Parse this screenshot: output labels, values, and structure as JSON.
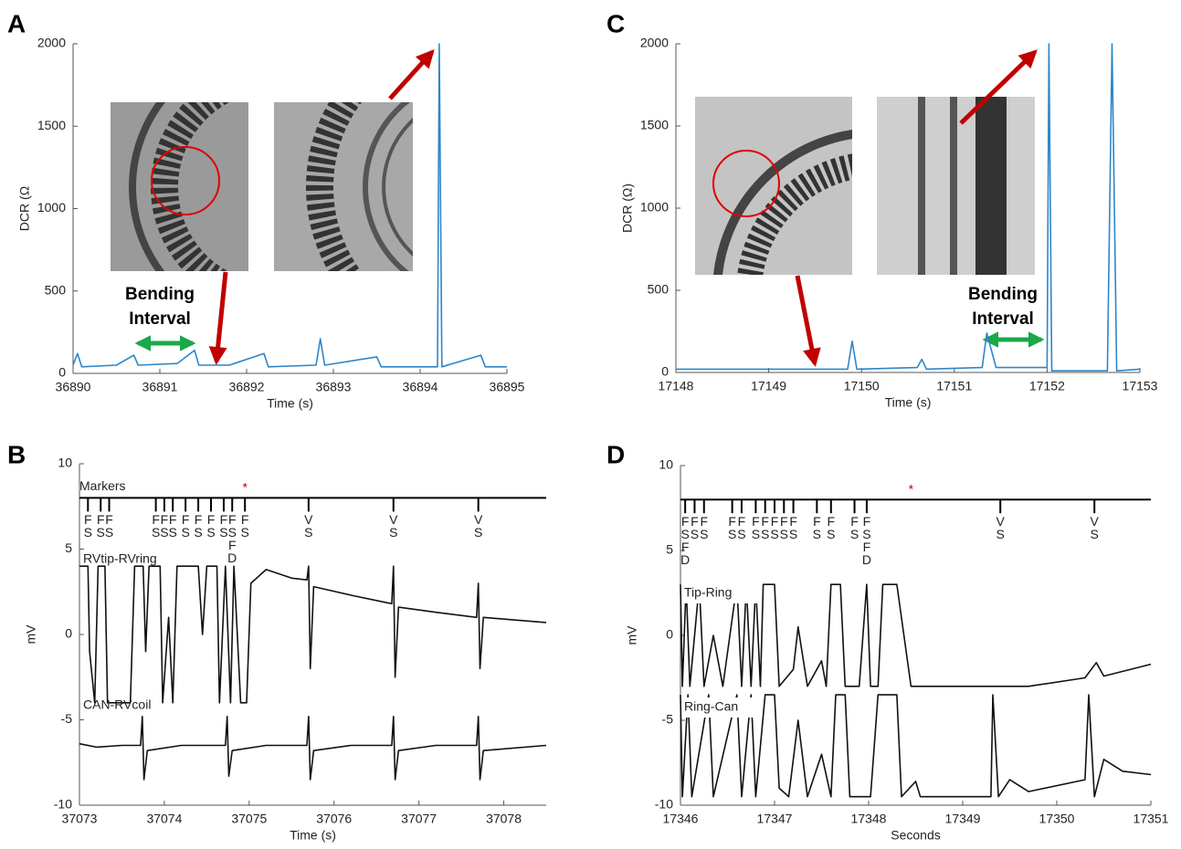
{
  "chart_data": [
    {
      "panel": "A",
      "type": "line",
      "xlabel": "Time (s)",
      "ylabel": "DCR (Ω",
      "xlim": [
        36890,
        36895
      ],
      "xticks": [
        36890,
        36891,
        36892,
        36893,
        36894,
        36895
      ],
      "ylim": [
        0,
        2000
      ],
      "yticks": [
        0,
        500,
        1000,
        1500,
        2000
      ],
      "annotation": [
        "Bending",
        "Interval"
      ],
      "series": [
        {
          "color": "#2e86c8",
          "x": [
            36890,
            36890.05,
            36890.1,
            36890.5,
            36890.7,
            36890.75,
            36891.2,
            36891.4,
            36891.45,
            36891.8,
            36892.2,
            36892.25,
            36892.8,
            36892.85,
            36892.9,
            36893.5,
            36893.55,
            36894.2,
            36894.22,
            36894.25,
            36894.7,
            36894.75,
            36895
          ],
          "values": [
            50,
            120,
            40,
            50,
            110,
            50,
            60,
            140,
            50,
            50,
            120,
            40,
            50,
            210,
            50,
            100,
            40,
            40,
            2000,
            40,
            110,
            40,
            40
          ]
        }
      ]
    },
    {
      "panel": "B",
      "type": "line",
      "xlabel": "Time (s)",
      "ylabel": "mV",
      "xlim": [
        37073,
        37078.5
      ],
      "xticks": [
        37073,
        37074,
        37075,
        37076,
        37077,
        37078
      ],
      "ylim": [
        -10,
        10
      ],
      "yticks": [
        -10,
        -5,
        0,
        5,
        10
      ],
      "markers": {
        "name": "Markers",
        "y": 8,
        "x": [
          37073.1,
          37073.25,
          37073.35,
          37073.9,
          37074.0,
          37074.1,
          37074.25,
          37074.4,
          37074.55,
          37074.7,
          37074.8,
          37074.95,
          37075.7,
          37076.7,
          37077.7
        ],
        "labels": [
          [
            "F",
            "S"
          ],
          [
            "F",
            "S"
          ],
          [
            "F",
            "S"
          ],
          [
            "F",
            "S"
          ],
          [
            "F",
            "S"
          ],
          [
            "F",
            "S"
          ],
          [
            "F",
            "S"
          ],
          [
            "F",
            "S"
          ],
          [
            "F",
            "S"
          ],
          [
            "F",
            "S"
          ],
          [
            "F",
            "S",
            "F",
            "D"
          ],
          [
            "F",
            "S"
          ],
          [
            "V",
            "S"
          ],
          [
            "V",
            "S"
          ],
          [
            "V",
            "S"
          ]
        ]
      },
      "asterisk": {
        "text": "*",
        "x": 37074.95,
        "y": 9
      },
      "series": [
        {
          "name": "RVtip-RVring",
          "color": "#111111",
          "x": [
            37073.0,
            37073.1,
            37073.12,
            37073.18,
            37073.22,
            37073.3,
            37073.33,
            37073.6,
            37073.65,
            37073.75,
            37073.78,
            37073.82,
            37073.95,
            37073.98,
            37074.05,
            37074.1,
            37074.15,
            37074.4,
            37074.45,
            37074.5,
            37074.62,
            37074.65,
            37074.72,
            37074.78,
            37074.82,
            37074.9,
            37074.97,
            37075.02,
            37075.2,
            37075.5,
            37075.68,
            37075.7,
            37075.72,
            37075.76,
            37076.2,
            37076.68,
            37076.7,
            37076.72,
            37076.76,
            37077.2,
            37077.68,
            37077.7,
            37077.72,
            37077.76,
            37078.5
          ],
          "values": [
            4,
            4,
            -1,
            -4,
            4,
            4,
            -4,
            -4,
            4,
            4,
            -1,
            4,
            4,
            -4,
            1,
            -4,
            4,
            4,
            0,
            4,
            4,
            -4,
            4,
            -4,
            4,
            -4,
            -4,
            3,
            3.8,
            3.3,
            3.2,
            4,
            -2,
            2.8,
            2.3,
            1.8,
            4,
            -2.5,
            1.6,
            1.3,
            1.0,
            3,
            -2,
            1,
            0.7
          ]
        },
        {
          "name": "CAN-RVcoil",
          "color": "#111111",
          "x": [
            37073,
            37073.2,
            37073.5,
            37073.72,
            37073.74,
            37073.76,
            37073.8,
            37074.2,
            37074.72,
            37074.74,
            37074.76,
            37074.8,
            37075.2,
            37075.68,
            37075.7,
            37075.72,
            37075.76,
            37076.2,
            37076.68,
            37076.7,
            37076.72,
            37076.76,
            37077.2,
            37077.68,
            37077.7,
            37077.72,
            37077.76,
            37078.5
          ],
          "values": [
            -6.4,
            -6.6,
            -6.5,
            -6.5,
            -4.8,
            -8.5,
            -6.8,
            -6.5,
            -6.5,
            -4.8,
            -8.3,
            -6.8,
            -6.5,
            -6.5,
            -4.8,
            -8.5,
            -6.8,
            -6.5,
            -6.5,
            -4.8,
            -8.5,
            -6.8,
            -6.5,
            -6.5,
            -4.8,
            -8.5,
            -6.8,
            -6.5
          ]
        }
      ]
    },
    {
      "panel": "C",
      "type": "line",
      "xlabel": "Time (s)",
      "ylabel": "DCR (Ω)",
      "xlim": [
        17148,
        17153
      ],
      "xticks": [
        17148,
        17149,
        17150,
        17151,
        17152,
        17153
      ],
      "ylim": [
        0,
        2000
      ],
      "yticks": [
        0,
        500,
        1000,
        1500,
        2000
      ],
      "annotation": [
        "Bending",
        "Interval"
      ],
      "series": [
        {
          "color": "#2e86c8",
          "x": [
            17148,
            17149.85,
            17149.9,
            17149.95,
            17150.6,
            17150.65,
            17150.7,
            17151.3,
            17151.35,
            17151.45,
            17152.0,
            17152.02,
            17152.05,
            17152.65,
            17152.7,
            17152.75,
            17153
          ],
          "values": [
            20,
            20,
            190,
            20,
            30,
            80,
            20,
            30,
            240,
            30,
            30,
            2000,
            10,
            10,
            2000,
            10,
            20
          ]
        }
      ]
    },
    {
      "panel": "D",
      "type": "line",
      "xlabel": "Seconds",
      "ylabel": "mV",
      "xlim": [
        17346,
        17351
      ],
      "xticks": [
        17346,
        17347,
        17348,
        17349,
        17350,
        17351
      ],
      "ylim": [
        -10,
        10
      ],
      "yticks": [
        -10,
        -5,
        0,
        5,
        10
      ],
      "markers": {
        "y": 8,
        "x": [
          17346.05,
          17346.15,
          17346.25,
          17346.55,
          17346.65,
          17346.8,
          17346.9,
          17347.0,
          17347.1,
          17347.2,
          17347.45,
          17347.6,
          17347.85,
          17347.98,
          17349.4,
          17350.4
        ],
        "labels": [
          [
            "F",
            "S",
            "F",
            "D"
          ],
          [
            "F",
            "S"
          ],
          [
            "F",
            "S"
          ],
          [
            "F",
            "S"
          ],
          [
            "F",
            "S"
          ],
          [
            "F",
            "S"
          ],
          [
            "F",
            "S"
          ],
          [
            "F",
            "S"
          ],
          [
            "F",
            "S"
          ],
          [
            "F",
            "S"
          ],
          [
            "F",
            "S"
          ],
          [
            "F",
            "S"
          ],
          [
            "F",
            "S"
          ],
          [
            "F",
            "S",
            "F",
            "D"
          ],
          [
            "V",
            "S"
          ],
          [
            "V",
            "S"
          ]
        ]
      },
      "asterisk": {
        "text": "*",
        "x": 17348.45,
        "y": 9
      },
      "series": [
        {
          "name": "Tip-Ring",
          "color": "#111111",
          "x": [
            17346,
            17346.02,
            17346.06,
            17346.1,
            17346.2,
            17346.25,
            17346.35,
            17346.45,
            17346.6,
            17346.65,
            17346.7,
            17346.75,
            17346.8,
            17346.85,
            17346.88,
            17347.0,
            17347.05,
            17347.2,
            17347.25,
            17347.35,
            17347.5,
            17347.55,
            17347.6,
            17347.7,
            17347.75,
            17347.9,
            17347.98,
            17348.02,
            17348.1,
            17348.15,
            17348.3,
            17348.45,
            17349.7,
            17350.3,
            17350.42,
            17350.5,
            17351
          ],
          "values": [
            3,
            -3,
            3,
            -3,
            3,
            -3,
            0,
            -3,
            3,
            -3,
            3,
            -3,
            3,
            -3,
            3,
            3,
            -3,
            -2,
            0.5,
            -3,
            -1.5,
            -3,
            3,
            3,
            -3,
            -3,
            3,
            -3,
            -3,
            3,
            3,
            -3,
            -3,
            -2.5,
            -1.6,
            -2.4,
            -1.7
          ]
        },
        {
          "name": "Ring-Can",
          "color": "#111111",
          "x": [
            17346,
            17346.02,
            17346.08,
            17346.12,
            17346.3,
            17346.35,
            17346.6,
            17346.65,
            17346.75,
            17346.8,
            17346.9,
            17347,
            17347.05,
            17347.15,
            17347.25,
            17347.35,
            17347.5,
            17347.6,
            17347.65,
            17347.75,
            17347.8,
            17348.02,
            17348.1,
            17348.3,
            17348.35,
            17348.5,
            17348.55,
            17349.3,
            17349.32,
            17349.38,
            17349.5,
            17349.7,
            17350.3,
            17350.34,
            17350.4,
            17350.5,
            17350.7,
            17351
          ],
          "values": [
            -3.5,
            -9.5,
            -3.5,
            -9.5,
            -3.5,
            -9.5,
            -3.5,
            -9.5,
            -3.5,
            -9.5,
            -3.5,
            -3.5,
            -9,
            -9.5,
            -5,
            -9.5,
            -7,
            -9.5,
            -3.5,
            -3.5,
            -9.5,
            -9.5,
            -3.5,
            -3.5,
            -9.5,
            -8.6,
            -9.5,
            -9.5,
            -3.5,
            -9.5,
            -8.5,
            -9.2,
            -8.5,
            -3.5,
            -9.5,
            -7.3,
            -8,
            -8.2
          ]
        }
      ]
    }
  ]
}
